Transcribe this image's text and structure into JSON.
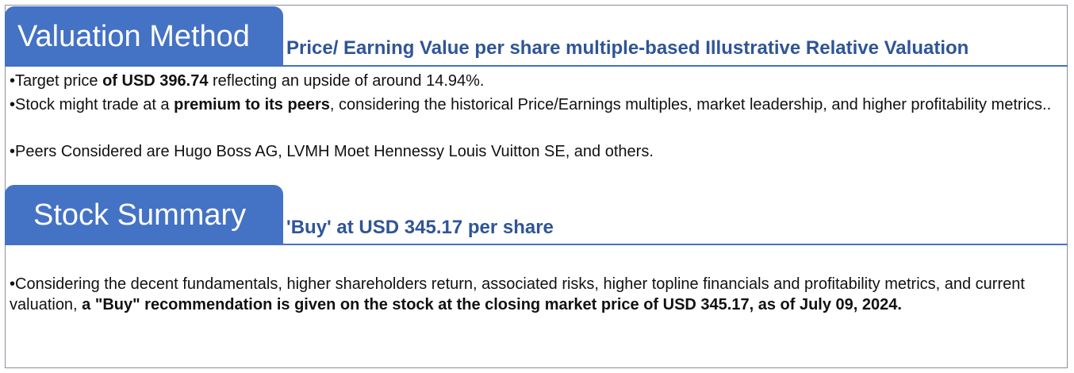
{
  "valuation": {
    "heading": "Valuation Method",
    "subtitle": "Price/ Earning Value per share multiple-based Illustrative Relative Valuation",
    "bullets": [
      {
        "marker": "•",
        "pre": "Target price ",
        "bold": "of USD 396.74",
        "post": " reflecting an upside of around 14.94%."
      },
      {
        "marker": "•",
        "pre": "Stock might trade at a ",
        "bold": "premium to its peers",
        "post": ", considering the historical Price/Earnings multiples, market leadership, and higher profitability metrics.."
      },
      {
        "marker": "•",
        "pre": "Peers Considered are Hugo Boss AG, LVMH Moet Hennessy Louis Vuitton SE, and others.",
        "bold": "",
        "post": ""
      }
    ]
  },
  "summary": {
    "heading": "Stock Summary",
    "subtitle": "'Buy' at USD 345.17 per share",
    "bullets": [
      {
        "marker": "•",
        "pre": "Considering the decent fundamentals, higher shareholders return, associated risks, higher topline financials and profitability metrics, and current valuation, ",
        "bold": "a \"Buy\" recommendation is given on the stock at the closing market price of USD 345.17, as of July 09, 2024.",
        "post": ""
      }
    ]
  },
  "colors": {
    "accent": "#4472c4",
    "subtitle": "#2f5597",
    "border": "#8a8f99"
  }
}
